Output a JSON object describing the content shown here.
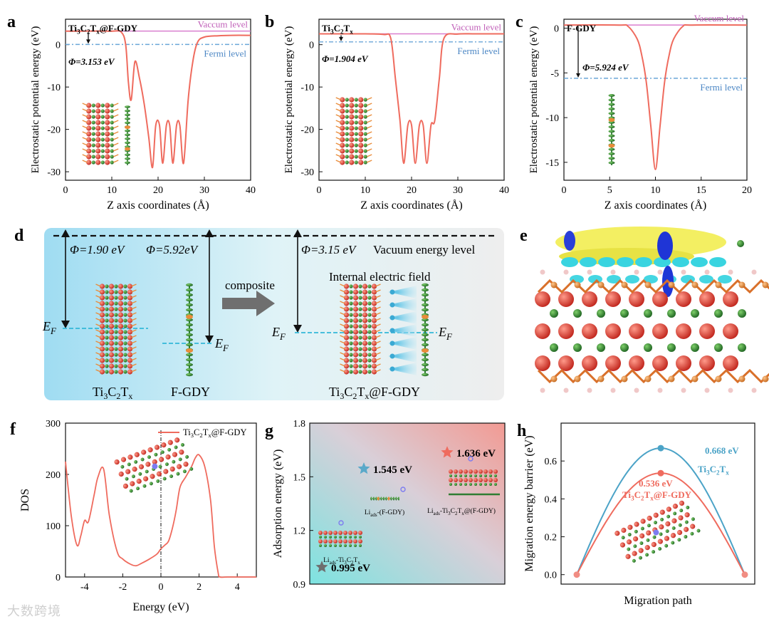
{
  "figure": {
    "panel_letters": [
      "a",
      "b",
      "c",
      "d",
      "e",
      "f",
      "g",
      "h"
    ],
    "watermark": "大数跨境"
  },
  "chart_data": [
    {
      "panel": "a",
      "type": "line",
      "title": "Ti3C2Tx@F-GDY",
      "xlabel": "Z axis coordinates (Å)",
      "ylabel": "Electrostatic potential energy (eV)",
      "xlim": [
        0,
        40
      ],
      "ylim": [
        -32,
        6
      ],
      "xticks": [
        0,
        10,
        20,
        30,
        40
      ],
      "yticks": [
        0,
        -10,
        -20,
        -30
      ],
      "x": [
        0,
        3,
        10,
        12,
        13,
        13.6,
        14.2,
        15,
        16,
        17,
        18,
        18.8,
        19.5,
        20.3,
        21,
        21.8,
        22.5,
        23.2,
        24,
        24.7,
        25.5,
        26.5,
        27.5,
        28.5,
        30,
        33,
        36,
        40
      ],
      "y": [
        3.2,
        3.2,
        3.2,
        3.0,
        0,
        -9,
        -13,
        -4,
        -8,
        -14,
        -22,
        -29,
        -19,
        -19,
        -28,
        -19,
        -19,
        -28,
        -19,
        -19,
        -28,
        -13,
        -4,
        0.5,
        1.8,
        2.1,
        2.2,
        2.2
      ],
      "vacuum_level": 3.2,
      "fermi_level": 0.05,
      "labels": {
        "vacuum": "Vaccum level",
        "fermi": "Fermi level",
        "phi": "Φ=3.153 eV"
      }
    },
    {
      "panel": "b",
      "type": "line",
      "title": "Ti3C2Tx",
      "xlabel": "Z axis coordinates (Å)",
      "ylabel": "Electrostatic potential energy (eV)",
      "xlim": [
        0,
        40
      ],
      "ylim": [
        -32,
        6
      ],
      "xticks": [
        0,
        10,
        20,
        30,
        40
      ],
      "yticks": [
        0,
        -10,
        -20,
        -30
      ],
      "x": [
        0,
        10,
        14,
        15.5,
        16.5,
        17.5,
        18.3,
        19.2,
        20,
        20.8,
        21.7,
        22.5,
        23.3,
        24.2,
        25,
        26,
        27,
        30,
        34,
        40
      ],
      "y": [
        2.55,
        2.55,
        2.4,
        1.5,
        -8,
        -18,
        -28,
        -19,
        -19,
        -28,
        -19,
        -19,
        -28,
        -19,
        -18,
        -8,
        1.5,
        2.5,
        2.55,
        2.55
      ],
      "vacuum_level": 2.55,
      "fermi_level": 0.65,
      "labels": {
        "vacuum": "Vaccum level",
        "fermi": "Fermi level",
        "phi": "Φ=1.904 eV"
      }
    },
    {
      "panel": "c",
      "type": "line",
      "title": "F-GDY",
      "xlabel": "Z axis coordinates (Å)",
      "ylabel": "Electrostatic potential energy (eV)",
      "xlim": [
        0,
        20
      ],
      "ylim": [
        -17,
        1
      ],
      "xticks": [
        0,
        5,
        10,
        15,
        20
      ],
      "yticks": [
        0,
        -5,
        -10,
        -15
      ],
      "x": [
        0,
        6,
        7,
        8,
        8.5,
        9,
        9.5,
        10,
        10.5,
        11,
        11.5,
        12,
        13,
        14,
        20
      ],
      "y": [
        0.35,
        0.35,
        0.2,
        -1.2,
        -3,
        -6,
        -11,
        -15.8,
        -11,
        -6,
        -3,
        -1.2,
        0.2,
        0.35,
        0.35
      ],
      "vacuum_level": 0.35,
      "fermi_level": -5.6,
      "labels": {
        "vacuum": "Vaccum level",
        "fermi": "Fermi level",
        "phi": "Φ=5.924 eV"
      }
    },
    {
      "panel": "f",
      "type": "line",
      "xlabel": "Energy (eV)",
      "ylabel": "DOS",
      "xlim": [
        -5,
        5
      ],
      "ylim": [
        0,
        300
      ],
      "xticks": [
        -4,
        -2,
        0,
        2,
        4
      ],
      "yticks": [
        0,
        100,
        200,
        300
      ],
      "series": [
        {
          "name": "Ti3C2Tx@F-GDY",
          "x": [
            -5,
            -4.7,
            -4.4,
            -4.2,
            -4.0,
            -3.8,
            -3.5,
            -3.3,
            -3.0,
            -2.7,
            -2.3,
            -2.0,
            -1.6,
            -1.3,
            -1.0,
            -0.6,
            -0.2,
            0.0,
            0.2,
            0.4,
            0.6,
            0.8,
            1.0,
            1.3,
            1.6,
            1.8,
            2.0,
            2.3,
            2.6,
            2.8,
            3.0,
            3.1,
            3.5,
            5.0
          ],
          "y": [
            225,
            120,
            62,
            80,
            110,
            108,
            160,
            195,
            210,
            120,
            50,
            35,
            25,
            22,
            27,
            35,
            45,
            55,
            62,
            70,
            95,
            130,
            175,
            195,
            215,
            232,
            238,
            215,
            150,
            60,
            8,
            0,
            0,
            0
          ]
        }
      ]
    },
    {
      "panel": "g",
      "type": "scatter",
      "xlabel": "",
      "ylabel": "Adsorption energy (eV)",
      "ylim": [
        0.9,
        1.8
      ],
      "yticks": [
        0.9,
        1.2,
        1.5,
        1.8
      ],
      "points": [
        {
          "label": "Li_ads-Ti3C2Tx",
          "value": 0.995,
          "text": "0.995 eV",
          "color": "#6e6e6e"
        },
        {
          "label": "Li_ads-(F-GDY)",
          "value": 1.545,
          "text": "1.545 eV",
          "color": "#5aa9c9"
        },
        {
          "label": "Li_ads-Ti3C2Tx@(F-GDY)",
          "value": 1.636,
          "text": "1.636 eV",
          "color": "#ef6b5e"
        }
      ]
    },
    {
      "panel": "h",
      "type": "line",
      "xlabel": "Migration path",
      "ylabel": "Migration energy barrier (eV)",
      "ylim": [
        -0.05,
        0.8
      ],
      "yticks": [
        0.0,
        0.2,
        0.4,
        0.6
      ],
      "series": [
        {
          "name": "Ti3C2Tx",
          "peak": 0.668,
          "text": "0.668 eV",
          "color": "#4ba3c7"
        },
        {
          "name": "Ti3C2Tx@F-GDY",
          "peak": 0.536,
          "text": "0.536 eV",
          "color": "#ef6b5e"
        }
      ]
    }
  ],
  "diagram_d": {
    "phi_left": "Φ=1.90 eV",
    "phi_mid": "Φ=5.92eV",
    "phi_right": "Φ=3.15 eV",
    "vacuum_label": "Vacuum energy level",
    "composite_label": "composite",
    "field_label": "Internal electric field",
    "ef_label": "E",
    "ef_sub": "F",
    "names": [
      "Ti3C2Tx",
      "F-GDY",
      "Ti3C2Tx@F-GDY"
    ]
  },
  "colors": {
    "curve": "#ef6b5e",
    "vacuum": "#d97fcf",
    "fermi": "#6aa6d8",
    "teal": "#4ba3c7",
    "ti": "#d9362b",
    "c": "#2f7d32",
    "f": "#e98c3a"
  }
}
